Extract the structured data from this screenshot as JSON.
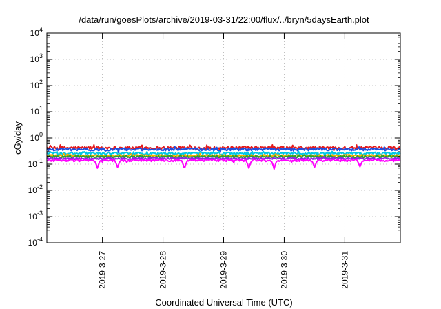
{
  "chart_data": {
    "type": "line",
    "title": "/data/run/goesPlots/archive/2019-03-31/22:00/flux/../bryn/5daysEarth.plot",
    "xlabel": "Coordinated Universal Time (UTC)",
    "ylabel": "cGy/day",
    "y_scale": "log",
    "ylim": [
      0.0001,
      10000
    ],
    "xlim": [
      "2019-03-26 02:00",
      "2019-03-31 22:00"
    ],
    "grid": true,
    "y_ticks": [
      {
        "value": 0.0001,
        "base": "10",
        "exp": "-4"
      },
      {
        "value": 0.001,
        "base": "10",
        "exp": "-3"
      },
      {
        "value": 0.01,
        "base": "10",
        "exp": "-2"
      },
      {
        "value": 0.1,
        "base": "10",
        "exp": "-1"
      },
      {
        "value": 1,
        "base": "10",
        "exp": "0"
      },
      {
        "value": 10,
        "base": "10",
        "exp": "1"
      },
      {
        "value": 100,
        "base": "10",
        "exp": "2"
      },
      {
        "value": 1000,
        "base": "10",
        "exp": "3"
      },
      {
        "value": 10000,
        "base": "10",
        "exp": "4"
      }
    ],
    "x_ticks": [
      {
        "value": "2019-03-27 00:00",
        "label": "2019-3-27"
      },
      {
        "value": "2019-03-28 00:00",
        "label": "2019-3-28"
      },
      {
        "value": "2019-03-29 00:00",
        "label": "2019-3-29"
      },
      {
        "value": "2019-03-30 00:00",
        "label": "2019-3-30"
      },
      {
        "value": "2019-03-31 00:00",
        "label": "2019-3-31"
      }
    ],
    "series": [
      {
        "color": "#e41a1c",
        "base_value": 0.42,
        "noise": 0.13,
        "x": [
          "2019-03-26 02:00",
          "2019-03-31 22:00"
        ]
      },
      {
        "color": "#1f4fe0",
        "base_value": 0.37,
        "noise": 0.12,
        "x": [
          "2019-03-26 02:00",
          "2019-03-31 22:00"
        ]
      },
      {
        "color": "#00c8e6",
        "base_value": 0.26,
        "noise": 0.1,
        "x": [
          "2019-03-26 02:00",
          "2019-03-31 22:00"
        ]
      },
      {
        "color": "#ffb000",
        "base_value": 0.215,
        "noise": 0.08,
        "x": [
          "2019-03-26 02:00",
          "2019-03-31 22:00"
        ]
      },
      {
        "color": "#2aa02a",
        "base_value": 0.195,
        "noise": 0.08,
        "x": [
          "2019-03-26 02:00",
          "2019-03-31 22:00"
        ]
      },
      {
        "color": "#8a2be2",
        "base_value": 0.165,
        "noise": 0.08,
        "x": [
          "2019-03-26 02:00",
          "2019-03-31 22:00"
        ]
      },
      {
        "color": "#ff00ff",
        "base_value": 0.14,
        "noise": 0.1,
        "x": [
          "2019-03-26 02:00",
          "2019-03-31 22:00"
        ],
        "dips": [
          {
            "x": "2019-03-26 22:00",
            "value": 0.07
          },
          {
            "x": "2019-03-27 06:00",
            "value": 0.075
          },
          {
            "x": "2019-03-28 08:30",
            "value": 0.065
          },
          {
            "x": "2019-03-29 10:00",
            "value": 0.07
          },
          {
            "x": "2019-03-29 20:00",
            "value": 0.065
          },
          {
            "x": "2019-03-30 12:00",
            "value": 0.075
          },
          {
            "x": "2019-03-31 06:00",
            "value": 0.08
          }
        ]
      }
    ]
  }
}
